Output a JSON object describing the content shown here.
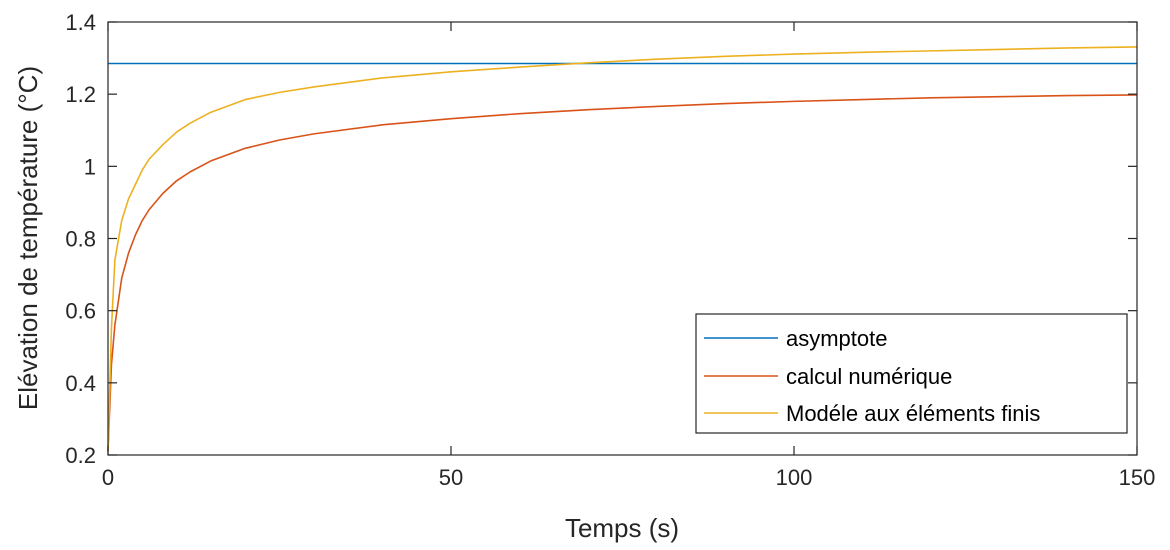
{
  "chart_data": {
    "type": "line",
    "title": "",
    "xlabel": "Temps (s)",
    "ylabel": "Elévation de température (°C)",
    "xlim": [
      0,
      150
    ],
    "ylim": [
      0.2,
      1.4
    ],
    "xticks": [
      0,
      50,
      100,
      150
    ],
    "xtick_labels": [
      "0",
      "50",
      "100",
      "150"
    ],
    "yticks": [
      0.2,
      0.4,
      0.6,
      0.8,
      1.0,
      1.2,
      1.4
    ],
    "ytick_labels": [
      "0.2",
      "0.4",
      "0.6",
      "0.8",
      "1",
      "1.2",
      "1.4"
    ],
    "grid": false,
    "legend_position": "bottom-right",
    "series": [
      {
        "name": "asymptote",
        "color": "#0072BD",
        "x": [
          0,
          150
        ],
        "y": [
          1.285,
          1.285
        ]
      },
      {
        "name": "calcul numérique",
        "color": "#D95319",
        "x": [
          0,
          0.5,
          1,
          2,
          3,
          4,
          5,
          6,
          8,
          10,
          12,
          15,
          20,
          25,
          30,
          40,
          50,
          60,
          70,
          80,
          90,
          100,
          110,
          120,
          130,
          140,
          150
        ],
        "y": [
          0.21,
          0.45,
          0.56,
          0.69,
          0.76,
          0.81,
          0.85,
          0.88,
          0.925,
          0.96,
          0.985,
          1.015,
          1.05,
          1.073,
          1.09,
          1.115,
          1.132,
          1.146,
          1.157,
          1.166,
          1.174,
          1.18,
          1.185,
          1.19,
          1.193,
          1.196,
          1.198
        ]
      },
      {
        "name": "Modéle aux éléments finis",
        "color": "#EDB120",
        "x": [
          0,
          0.5,
          1,
          2,
          3,
          4,
          5,
          6,
          8,
          10,
          12,
          15,
          20,
          25,
          30,
          40,
          50,
          60,
          70,
          80,
          90,
          100,
          110,
          120,
          130,
          140,
          150
        ],
        "y": [
          0.21,
          0.55,
          0.74,
          0.85,
          0.91,
          0.95,
          0.99,
          1.02,
          1.06,
          1.095,
          1.12,
          1.15,
          1.185,
          1.205,
          1.22,
          1.245,
          1.262,
          1.275,
          1.287,
          1.297,
          1.305,
          1.311,
          1.316,
          1.32,
          1.324,
          1.328,
          1.331
        ]
      }
    ]
  }
}
